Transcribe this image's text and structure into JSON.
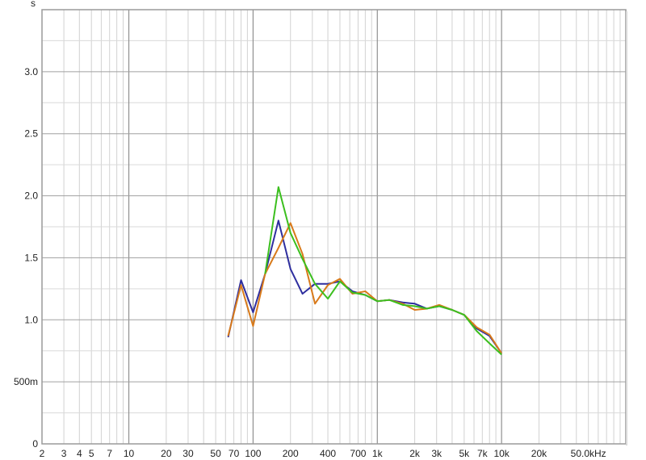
{
  "chart_data": {
    "type": "line",
    "title": "",
    "xlabel": "",
    "ylabel": "",
    "y_unit_label": "s",
    "x_scale": "log",
    "xlim": [
      2,
      100000
    ],
    "ylim": [
      0,
      3.5
    ],
    "grid": true,
    "legend": "none",
    "x_tick_labels": [
      {
        "value": 2,
        "label": "2"
      },
      {
        "value": 3,
        "label": "3"
      },
      {
        "value": 4,
        "label": "4"
      },
      {
        "value": 5,
        "label": "5"
      },
      {
        "value": 7,
        "label": "7"
      },
      {
        "value": 10,
        "label": "10"
      },
      {
        "value": 20,
        "label": "20"
      },
      {
        "value": 30,
        "label": "30"
      },
      {
        "value": 50,
        "label": "50"
      },
      {
        "value": 70,
        "label": "70"
      },
      {
        "value": 100,
        "label": "100"
      },
      {
        "value": 200,
        "label": "200"
      },
      {
        "value": 400,
        "label": "400"
      },
      {
        "value": 700,
        "label": "700"
      },
      {
        "value": 1000,
        "label": "1k"
      },
      {
        "value": 2000,
        "label": "2k"
      },
      {
        "value": 3000,
        "label": "3k"
      },
      {
        "value": 5000,
        "label": "5k"
      },
      {
        "value": 7000,
        "label": "7k"
      },
      {
        "value": 10000,
        "label": "10k"
      },
      {
        "value": 20000,
        "label": "20k"
      },
      {
        "value": 50000,
        "label": "50.0kHz"
      }
    ],
    "y_tick_labels": [
      {
        "value": 0,
        "label": "0"
      },
      {
        "value": 0.5,
        "label": "500m"
      },
      {
        "value": 1.0,
        "label": "1.0"
      },
      {
        "value": 1.5,
        "label": "1.5"
      },
      {
        "value": 2.0,
        "label": "2.0"
      },
      {
        "value": 2.5,
        "label": "2.5"
      },
      {
        "value": 3.0,
        "label": "3.0"
      }
    ],
    "x": [
      63,
      80,
      100,
      125,
      160,
      200,
      250,
      315,
      400,
      500,
      630,
      800,
      1000,
      1250,
      1600,
      2000,
      2500,
      3150,
      4000,
      5000,
      6300,
      8000,
      10000
    ],
    "series": [
      {
        "color": "#2e2e9e",
        "values": [
          0.86,
          1.32,
          1.06,
          1.37,
          1.8,
          1.41,
          1.21,
          1.29,
          1.29,
          1.31,
          1.23,
          1.2,
          1.15,
          1.16,
          1.14,
          1.13,
          1.09,
          1.11,
          1.08,
          1.04,
          0.93,
          0.87,
          0.73
        ]
      },
      {
        "color": "#d87a1a",
        "values": [
          0.87,
          1.28,
          0.95,
          1.37,
          1.58,
          1.78,
          1.53,
          1.13,
          1.28,
          1.33,
          1.21,
          1.23,
          1.15,
          1.16,
          1.13,
          1.08,
          1.09,
          1.12,
          1.08,
          1.04,
          0.94,
          0.88,
          0.73
        ]
      },
      {
        "color": "#3cbf1f",
        "values": [
          null,
          null,
          null,
          1.37,
          2.07,
          1.7,
          1.49,
          1.29,
          1.17,
          1.31,
          1.22,
          1.2,
          1.15,
          1.16,
          1.12,
          1.11,
          1.09,
          1.11,
          1.08,
          1.04,
          0.91,
          0.81,
          0.72
        ]
      }
    ]
  }
}
